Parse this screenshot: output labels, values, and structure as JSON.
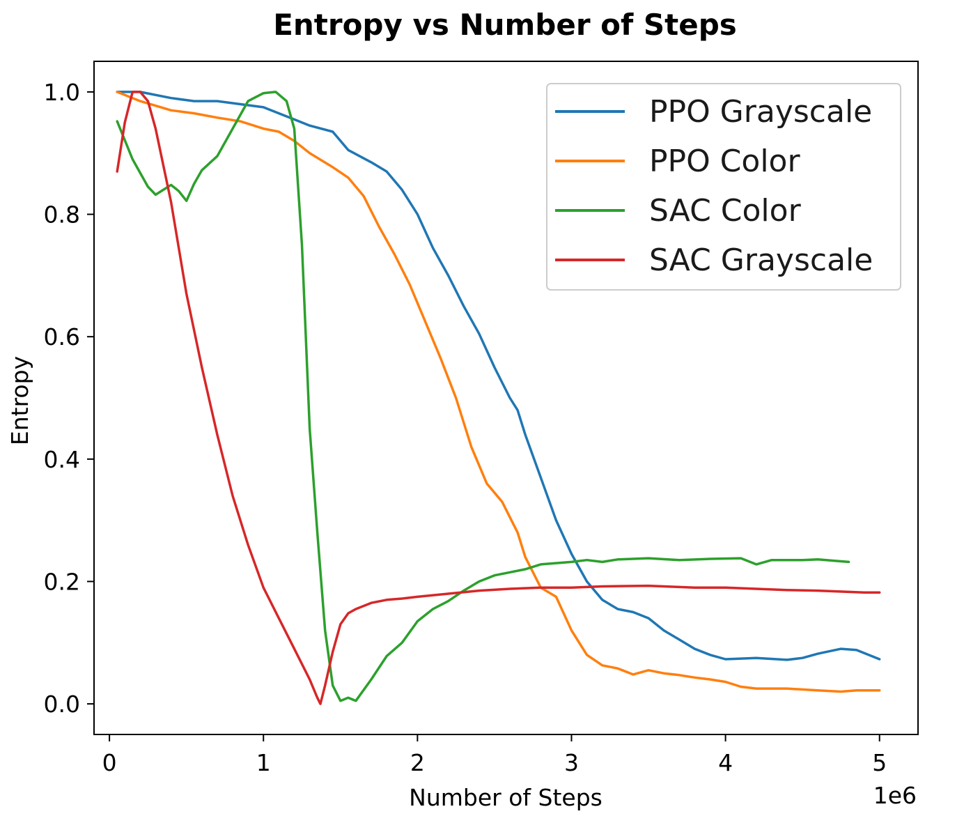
{
  "chart_data": {
    "type": "line",
    "title": "Entropy vs Number of Steps",
    "xlabel": "Number of Steps",
    "ylabel": "Entropy",
    "x_offset_label": "1e6",
    "x_scale": 1000000,
    "xlim": [
      -0.1,
      5.25
    ],
    "ylim": [
      -0.05,
      1.05
    ],
    "xticks": [
      0,
      1,
      2,
      3,
      4,
      5
    ],
    "xtick_labels": [
      "0",
      "1",
      "2",
      "3",
      "4",
      "5"
    ],
    "yticks": [
      0.0,
      0.2,
      0.4,
      0.6,
      0.8,
      1.0
    ],
    "ytick_labels": [
      "0.0",
      "0.2",
      "0.4",
      "0.6",
      "0.8",
      "1.0"
    ],
    "grid": false,
    "legend_position": "top-right",
    "series": [
      {
        "name": "PPO Grayscale",
        "color": "#1f77b4",
        "x": [
          0.05,
          0.2,
          0.4,
          0.55,
          0.7,
          0.85,
          1.0,
          1.1,
          1.2,
          1.3,
          1.45,
          1.55,
          1.7,
          1.8,
          1.9,
          2.0,
          2.1,
          2.2,
          2.3,
          2.4,
          2.5,
          2.6,
          2.65,
          2.7,
          2.8,
          2.9,
          3.0,
          3.1,
          3.2,
          3.3,
          3.4,
          3.5,
          3.6,
          3.7,
          3.8,
          3.9,
          4.0,
          4.2,
          4.4,
          4.5,
          4.6,
          4.75,
          4.85,
          5.0
        ],
        "y": [
          1.0,
          1.0,
          0.99,
          0.985,
          0.985,
          0.98,
          0.975,
          0.965,
          0.955,
          0.945,
          0.935,
          0.905,
          0.885,
          0.87,
          0.84,
          0.8,
          0.745,
          0.7,
          0.65,
          0.605,
          0.55,
          0.5,
          0.48,
          0.44,
          0.37,
          0.3,
          0.245,
          0.2,
          0.17,
          0.155,
          0.15,
          0.14,
          0.12,
          0.105,
          0.09,
          0.08,
          0.073,
          0.075,
          0.072,
          0.075,
          0.082,
          0.09,
          0.088,
          0.073
        ]
      },
      {
        "name": "PPO Color",
        "color": "#ff7f0e",
        "x": [
          0.05,
          0.2,
          0.4,
          0.55,
          0.7,
          0.85,
          1.0,
          1.1,
          1.2,
          1.3,
          1.45,
          1.55,
          1.65,
          1.75,
          1.85,
          1.95,
          2.05,
          2.15,
          2.25,
          2.35,
          2.45,
          2.55,
          2.65,
          2.7,
          2.8,
          2.9,
          3.0,
          3.1,
          3.2,
          3.3,
          3.4,
          3.5,
          3.6,
          3.7,
          3.8,
          3.9,
          4.0,
          4.1,
          4.2,
          4.4,
          4.6,
          4.75,
          4.85,
          5.0
        ],
        "y": [
          1.0,
          0.985,
          0.97,
          0.965,
          0.958,
          0.952,
          0.94,
          0.935,
          0.92,
          0.9,
          0.877,
          0.86,
          0.83,
          0.78,
          0.735,
          0.685,
          0.625,
          0.565,
          0.5,
          0.42,
          0.36,
          0.33,
          0.28,
          0.24,
          0.19,
          0.175,
          0.12,
          0.08,
          0.063,
          0.058,
          0.048,
          0.055,
          0.05,
          0.047,
          0.043,
          0.04,
          0.036,
          0.028,
          0.025,
          0.025,
          0.022,
          0.02,
          0.022,
          0.022
        ]
      },
      {
        "name": "SAC Color",
        "color": "#2ca02c",
        "x": [
          0.05,
          0.15,
          0.25,
          0.3,
          0.4,
          0.45,
          0.5,
          0.55,
          0.6,
          0.7,
          0.8,
          0.9,
          1.0,
          1.08,
          1.15,
          1.2,
          1.25,
          1.3,
          1.35,
          1.4,
          1.45,
          1.5,
          1.55,
          1.6,
          1.7,
          1.8,
          1.9,
          2.0,
          2.1,
          2.2,
          2.3,
          2.4,
          2.5,
          2.6,
          2.7,
          2.8,
          2.9,
          3.0,
          3.1,
          3.2,
          3.3,
          3.5,
          3.7,
          3.9,
          4.1,
          4.2,
          4.3,
          4.5,
          4.6,
          4.7,
          4.8
        ],
        "y": [
          0.952,
          0.89,
          0.845,
          0.832,
          0.848,
          0.838,
          0.822,
          0.85,
          0.872,
          0.895,
          0.94,
          0.985,
          0.998,
          1.0,
          0.985,
          0.94,
          0.75,
          0.45,
          0.28,
          0.12,
          0.03,
          0.005,
          0.01,
          0.005,
          0.04,
          0.078,
          0.1,
          0.135,
          0.155,
          0.168,
          0.185,
          0.2,
          0.21,
          0.215,
          0.22,
          0.228,
          0.23,
          0.232,
          0.235,
          0.232,
          0.236,
          0.238,
          0.235,
          0.237,
          0.238,
          0.228,
          0.235,
          0.235,
          0.236,
          0.234,
          0.232
        ]
      },
      {
        "name": "SAC Grayscale",
        "color": "#d62728",
        "x": [
          0.05,
          0.1,
          0.15,
          0.2,
          0.25,
          0.3,
          0.4,
          0.5,
          0.6,
          0.7,
          0.8,
          0.9,
          1.0,
          1.1,
          1.2,
          1.3,
          1.35,
          1.37,
          1.4,
          1.45,
          1.5,
          1.55,
          1.6,
          1.7,
          1.8,
          1.9,
          2.0,
          2.2,
          2.4,
          2.6,
          2.8,
          3.0,
          3.2,
          3.5,
          3.8,
          4.0,
          4.2,
          4.4,
          4.6,
          4.8,
          4.9,
          5.0
        ],
        "y": [
          0.87,
          0.95,
          1.0,
          1.0,
          0.985,
          0.94,
          0.82,
          0.67,
          0.55,
          0.44,
          0.34,
          0.26,
          0.19,
          0.14,
          0.09,
          0.04,
          0.01,
          0.0,
          0.03,
          0.085,
          0.13,
          0.148,
          0.155,
          0.165,
          0.17,
          0.172,
          0.175,
          0.18,
          0.185,
          0.188,
          0.19,
          0.19,
          0.192,
          0.193,
          0.19,
          0.19,
          0.188,
          0.186,
          0.185,
          0.183,
          0.182,
          0.182
        ]
      }
    ]
  }
}
